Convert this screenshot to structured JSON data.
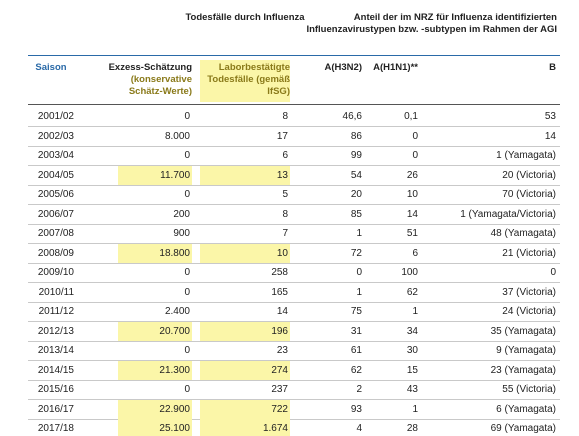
{
  "header": {
    "deaths_group": "Todesfälle durch Influenza",
    "share_group": [
      "Anteil der im NRZ für Influenza identifizierten",
      "Influenzavirustypen bzw. -subtypen im Rahmen der AGI"
    ]
  },
  "table": {
    "columns": [
      "Saison",
      [
        "Exzess-Schätzung",
        "(konservative",
        "Schätz-Werte)"
      ],
      [
        "Laborbestätigte",
        "Todesfälle (gemäß",
        "IfSG)"
      ],
      "A(H3N2)",
      "A(H1N1)**",
      "B"
    ],
    "rows": [
      {
        "cells": [
          "2001/02",
          "0",
          "8",
          "46,6",
          "0,1",
          "53"
        ],
        "highlight": false
      },
      {
        "cells": [
          "2002/03",
          "8.000",
          "17",
          "86",
          "0",
          "14"
        ],
        "highlight": false
      },
      {
        "cells": [
          "2003/04",
          "0",
          "6",
          "99",
          "0",
          "1 (Yamagata)"
        ],
        "highlight": false
      },
      {
        "cells": [
          "2004/05",
          "11.700",
          "13",
          "54",
          "26",
          "20 (Victoria)"
        ],
        "highlight": true
      },
      {
        "cells": [
          "2005/06",
          "0",
          "5",
          "20",
          "10",
          "70 (Victoria)"
        ],
        "highlight": false
      },
      {
        "cells": [
          "2006/07",
          "200",
          "8",
          "85",
          "14",
          "1 (Yamagata/Victoria)"
        ],
        "highlight": false
      },
      {
        "cells": [
          "2007/08",
          "900",
          "7",
          "1",
          "51",
          "48 (Yamagata)"
        ],
        "highlight": false
      },
      {
        "cells": [
          "2008/09",
          "18.800",
          "10",
          "72",
          "6",
          "21 (Victoria)"
        ],
        "highlight": true
      },
      {
        "cells": [
          "2009/10",
          "0",
          "258",
          "0",
          "100",
          "0"
        ],
        "highlight": false
      },
      {
        "cells": [
          "2010/11",
          "0",
          "165",
          "1",
          "62",
          "37 (Victoria)"
        ],
        "highlight": false
      },
      {
        "cells": [
          "2011/12",
          "2.400",
          "14",
          "75",
          "1",
          "24 (Victoria)"
        ],
        "highlight": false
      },
      {
        "cells": [
          "2012/13",
          "20.700",
          "196",
          "31",
          "34",
          "35 (Yamagata)"
        ],
        "highlight": true
      },
      {
        "cells": [
          "2013/14",
          "0",
          "23",
          "61",
          "30",
          "9 (Yamagata)"
        ],
        "highlight": false
      },
      {
        "cells": [
          "2014/15",
          "21.300",
          "274",
          "62",
          "15",
          "23 (Yamagata)"
        ],
        "highlight": true
      },
      {
        "cells": [
          "2015/16",
          "0",
          "237",
          "2",
          "43",
          "55 (Victoria)"
        ],
        "highlight": false
      },
      {
        "cells": [
          "2016/17",
          "22.900",
          "722",
          "93",
          "1",
          "6 (Yamagata)"
        ],
        "highlight": true
      },
      {
        "cells": [
          "2017/18",
          "25.100",
          "1.674",
          "4",
          "28",
          "69 (Yamagata)"
        ],
        "highlight": true
      }
    ]
  }
}
